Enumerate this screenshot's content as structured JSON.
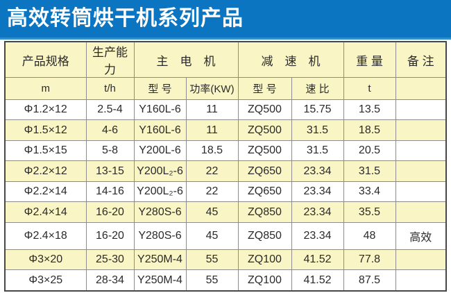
{
  "title": "高效转筒烘干机系列产品",
  "colors": {
    "title_bg": "#0b75c1",
    "title_bg_bottom": "#3090cd",
    "header_bg": "#faf5c5",
    "row_alt_bg": "#faf5c5",
    "row_bg": "#ffffff",
    "grid": "#8c8c8c",
    "outer": "#474747",
    "text": "#2a2a2a"
  },
  "table": {
    "header_groups": [
      {
        "label": "产品规格",
        "colspan": 1
      },
      {
        "label": "生产能力",
        "colspan": 1
      },
      {
        "label": "主　电　机",
        "colspan": 2
      },
      {
        "label": "减　速　机",
        "colspan": 2
      },
      {
        "label": "重 量",
        "colspan": 1
      },
      {
        "label": "备 注",
        "colspan": 1
      }
    ],
    "sub_headers": [
      "m",
      "t/h",
      "型 号",
      "功率(KW)",
      "型 号",
      "速 比",
      "t",
      ""
    ],
    "column_keys": [
      "spec",
      "capacity",
      "motor-model",
      "motor-power",
      "reducer-model",
      "reducer-ratio",
      "weight",
      "remark"
    ],
    "rows": [
      [
        "Φ1.2×12",
        "2.5-4",
        "Y160L-6",
        "11",
        "ZQ500",
        "15.75",
        "13.5",
        ""
      ],
      [
        "Φ1.5×12",
        "4-6",
        "Y160L-6",
        "11",
        "ZQ500",
        "31.5",
        "18.5",
        ""
      ],
      [
        "Φ1.5×15",
        "5-8",
        "Y200L-6",
        "18.5",
        "ZQ500",
        "31.5",
        "20.5",
        ""
      ],
      [
        "Φ2.2×12",
        "13-15",
        "Y200L₂-6",
        "22",
        "ZQ650",
        "23.34",
        "31.5",
        ""
      ],
      [
        "Φ2.2×14",
        "14-16",
        "Y200L₂-6",
        "22",
        "ZQ650",
        "23.34",
        "33.4",
        ""
      ],
      [
        "Φ2.4×14",
        "16-20",
        "Y280S-6",
        "45",
        "ZQ850",
        "23.34",
        "35.5",
        ""
      ],
      [
        "Φ2.4×18",
        "16-20",
        "Y280S-6",
        "45",
        "ZQ850",
        "23.34",
        "48",
        "高效"
      ],
      [
        "Φ3×20",
        "25-30",
        "Y250M-4",
        "55",
        "ZQ100",
        "41.52",
        "77.8",
        ""
      ],
      [
        "Φ3×25",
        "28-34",
        "Y250M-4",
        "55",
        "ZQ100",
        "41.52",
        "87.5",
        ""
      ]
    ]
  }
}
